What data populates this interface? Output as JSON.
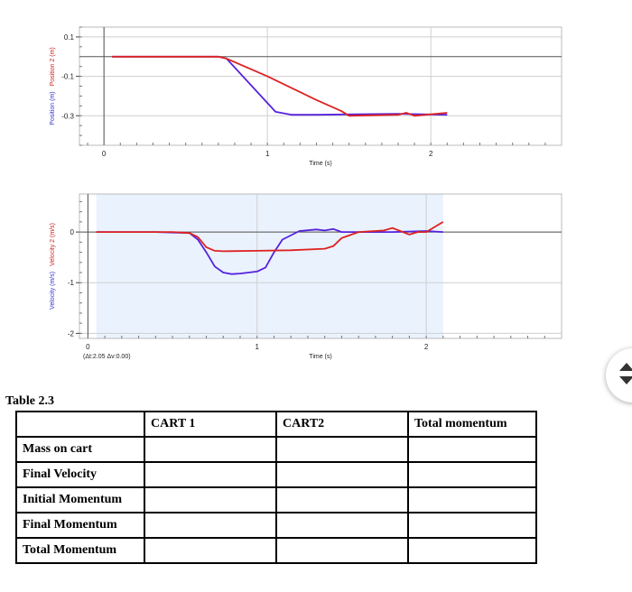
{
  "chart_data": [
    {
      "type": "line",
      "xlabel": "Time (s)",
      "ylabel": [
        "Position (m)",
        "Position 2 (m)"
      ],
      "x_ticks": [
        "0",
        "1",
        "2"
      ],
      "y_ticks": [
        "0.1",
        "-0.1",
        "-0.3"
      ],
      "xlim": [
        -0.15,
        2.8
      ],
      "ylim": [
        -0.45,
        0.15
      ],
      "grid": true,
      "series": [
        {
          "color": "#5522dd",
          "x": [
            0.05,
            0.7,
            0.75,
            1.05,
            1.15,
            1.3,
            1.8,
            2.1
          ],
          "y": [
            0.0,
            0.0,
            -0.01,
            -0.28,
            -0.295,
            -0.295,
            -0.29,
            -0.295
          ]
        },
        {
          "color": "#dd2222",
          "x": [
            0.05,
            0.7,
            0.75,
            1.0,
            1.3,
            1.45,
            1.5,
            1.8,
            1.85,
            1.9,
            2.1
          ],
          "y": [
            0.0,
            0.0,
            -0.01,
            -0.1,
            -0.22,
            -0.275,
            -0.3,
            -0.295,
            -0.285,
            -0.3,
            -0.285
          ]
        }
      ]
    },
    {
      "type": "line",
      "xlabel": "Time (s)",
      "ylabel": [
        "Velocity (m/s)",
        "Velocity 2 (m/s)"
      ],
      "x_ticks": [
        "0",
        "1",
        "2"
      ],
      "y_ticks": [
        "0",
        "-1",
        "-2"
      ],
      "xlim": [
        -0.05,
        2.8
      ],
      "ylim": [
        -2.1,
        0.75
      ],
      "grid": true,
      "shaded_range": [
        0.05,
        2.1
      ],
      "annotation": "(Δt:2.05 Δv:0.00)",
      "series": [
        {
          "color": "#5522dd",
          "x": [
            0.05,
            0.4,
            0.6,
            0.65,
            0.7,
            0.75,
            0.8,
            0.85,
            0.9,
            1.0,
            1.05,
            1.1,
            1.15,
            1.25,
            1.35,
            1.4,
            1.45,
            1.5,
            1.6,
            1.8,
            2.0,
            2.1
          ],
          "y": [
            0.0,
            0.0,
            -0.02,
            -0.15,
            -0.4,
            -0.68,
            -0.8,
            -0.83,
            -0.82,
            -0.78,
            -0.7,
            -0.4,
            -0.15,
            0.02,
            0.05,
            0.03,
            0.06,
            0.0,
            0.0,
            0.0,
            0.02,
            0.0
          ]
        },
        {
          "color": "#dd2222",
          "x": [
            0.05,
            0.5,
            0.6,
            0.65,
            0.7,
            0.75,
            0.8,
            1.0,
            1.2,
            1.4,
            1.45,
            1.5,
            1.6,
            1.75,
            1.8,
            1.9,
            1.95,
            2.0,
            2.1
          ],
          "y": [
            0.0,
            0.0,
            -0.02,
            -0.1,
            -0.3,
            -0.37,
            -0.38,
            -0.37,
            -0.36,
            -0.33,
            -0.28,
            -0.12,
            0.0,
            0.03,
            0.08,
            -0.05,
            0.0,
            0.0,
            0.2
          ]
        }
      ]
    }
  ],
  "table": {
    "caption": "Table 2.3",
    "headers": [
      "",
      "CART 1",
      "CART2",
      "Total momentum"
    ],
    "rows": [
      "Mass on cart",
      "Final Velocity",
      "Initial Momentum",
      "Final Momentum",
      "Total Momentum"
    ]
  }
}
